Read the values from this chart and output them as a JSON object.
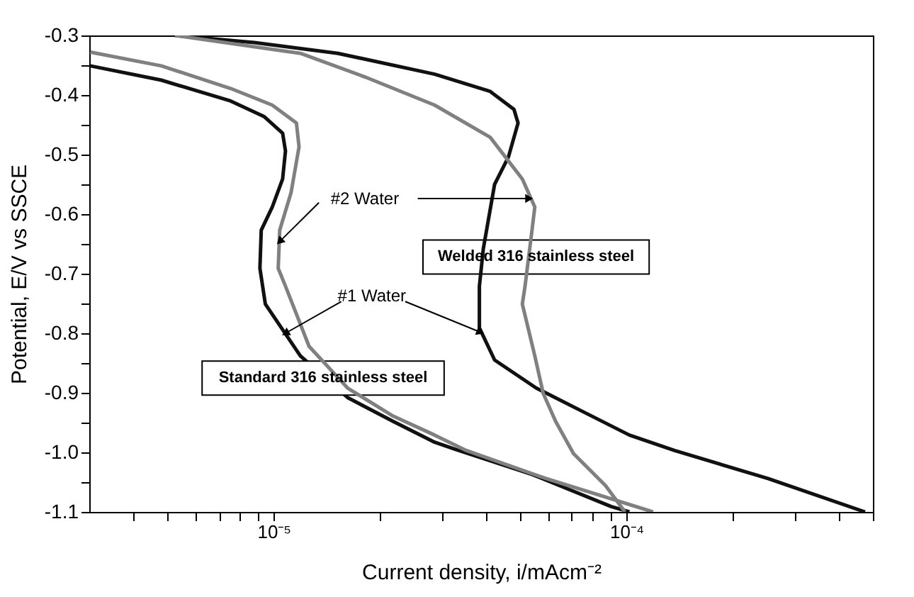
{
  "chart_data": {
    "type": "line",
    "xlabel": "Current density, i/mAcm⁻²",
    "ylabel": "Potential, E/V vs SSCE",
    "log": "x",
    "grid": false,
    "legend": false,
    "marker": "none",
    "line_style": "solid",
    "xlim": [
      3e-06,
      0.0005
    ],
    "ylim": [
      -1.1,
      -0.3
    ],
    "xticks": [
      {
        "value": 4e-06,
        "label": null
      },
      {
        "value": 5e-06,
        "label": null
      },
      {
        "value": 6e-06,
        "label": null
      },
      {
        "value": 7e-06,
        "label": null
      },
      {
        "value": 8e-06,
        "label": null
      },
      {
        "value": 9e-06,
        "label": null
      },
      {
        "value": 1e-05,
        "label": "10⁻⁵"
      },
      {
        "value": 2e-05,
        "label": null
      },
      {
        "value": 3e-05,
        "label": null
      },
      {
        "value": 4e-05,
        "label": null
      },
      {
        "value": 5e-05,
        "label": null
      },
      {
        "value": 6e-05,
        "label": null
      },
      {
        "value": 7e-05,
        "label": null
      },
      {
        "value": 8e-05,
        "label": null
      },
      {
        "value": 9e-05,
        "label": null
      },
      {
        "value": 0.0001,
        "label": "10⁻⁴"
      },
      {
        "value": 0.0002,
        "label": null
      },
      {
        "value": 0.0003,
        "label": null
      },
      {
        "value": 0.0004,
        "label": null
      },
      {
        "value": 0.0005,
        "label": null
      }
    ],
    "yticks": [
      -1.1,
      {
        "value": -1.05,
        "label": null
      },
      {
        "value": -1.0,
        "label": "-1.0"
      },
      {
        "value": -0.95,
        "label": null
      },
      -0.9,
      {
        "value": -0.85,
        "label": null
      },
      -0.8,
      {
        "value": -0.75,
        "label": null
      },
      -0.7,
      {
        "value": -0.65,
        "label": null
      },
      -0.6,
      {
        "value": -0.55,
        "label": null
      },
      -0.5,
      {
        "value": -0.45,
        "label": null
      },
      -0.4,
      {
        "value": -0.35,
        "label": null
      },
      -0.3
    ],
    "series": [
      {
        "color": "#111111",
        "x": [
          3.02e-06,
          4.8e-06,
          7.55e-06,
          9.38e-06,
          1.06e-05,
          1.08e-05,
          1.06e-05,
          9.91e-06,
          9.22e-06,
          9.14e-06,
          9.47e-06,
          1.19e-05,
          1.62e-05,
          2.18e-05,
          2.86e-05,
          3.28e-05,
          5.4e-05,
          9.05e-05,
          0.000102
        ],
        "values": [
          -0.351,
          -0.375,
          -0.41,
          -0.436,
          -0.464,
          -0.494,
          -0.541,
          -0.588,
          -0.627,
          -0.691,
          -0.751,
          -0.838,
          -0.908,
          -0.948,
          -0.983,
          -0.995,
          -1.037,
          -1.091,
          -1.1
        ]
      },
      {
        "color": "#808080",
        "x": [
          3.02e-06,
          4.8e-06,
          7.55e-06,
          9.91e-06,
          1.16e-05,
          1.18e-05,
          1.12e-05,
          1.04e-05,
          1.03e-05,
          1.08e-05,
          1.26e-05,
          1.62e-05,
          2.18e-05,
          2.86e-05,
          3.52e-05,
          5.92e-05,
          0.000119
        ],
        "values": [
          -0.328,
          -0.351,
          -0.389,
          -0.417,
          -0.447,
          -0.487,
          -0.564,
          -0.627,
          -0.691,
          -0.721,
          -0.822,
          -0.892,
          -0.939,
          -0.971,
          -0.997,
          -1.044,
          -1.1
        ]
      },
      {
        "color": "#111111",
        "x": [
          5.25e-06,
          8.81e-06,
          1.52e-05,
          2.86e-05,
          4.11e-05,
          4.8e-05,
          4.93e-05,
          4.63e-05,
          4.23e-05,
          3.93e-05,
          3.83e-05,
          3.83e-05,
          4.23e-05,
          5.55e-05,
          7.55e-05,
          0.000102,
          0.000137,
          0.000252,
          0.000475
        ],
        "values": [
          -0.3,
          -0.312,
          -0.33,
          -0.365,
          -0.394,
          -0.424,
          -0.447,
          -0.504,
          -0.55,
          -0.658,
          -0.721,
          -0.791,
          -0.845,
          -0.892,
          -0.932,
          -0.971,
          -0.997,
          -1.044,
          -1.1
        ]
      },
      {
        "color": "#808080",
        "x": [
          5.25e-06,
          1.19e-05,
          1.82e-05,
          2.86e-05,
          4.11e-05,
          5.07e-05,
          5.5e-05,
          5.4e-05,
          5.16e-05,
          5.07e-05,
          5.5e-05,
          5.81e-05,
          6.3e-05,
          7.08e-05,
          8.73e-05,
          9.91e-05
        ],
        "values": [
          -0.3,
          -0.33,
          -0.37,
          -0.417,
          -0.471,
          -0.541,
          -0.588,
          -0.627,
          -0.721,
          -0.751,
          -0.838,
          -0.901,
          -0.948,
          -1.002,
          -1.056,
          -1.1
        ]
      }
    ],
    "annotations": [
      {
        "text": "#2 Water",
        "x": 1.04e-05,
        "y": -0.646
      },
      "Welded 316 stainless steel",
      {
        "text": "#1 Water",
        "x": 1.08e-05,
        "y": -0.8
      },
      "Standard 316 stainless steel"
    ]
  }
}
